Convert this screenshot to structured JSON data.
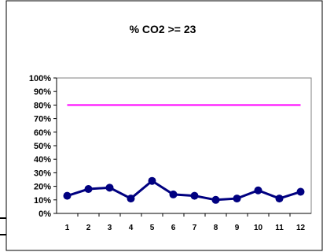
{
  "chart_data": {
    "type": "line",
    "title": "% CO2 >= 23",
    "xlabel": "",
    "ylabel": "",
    "categories": [
      "1",
      "2",
      "3",
      "4",
      "5",
      "6",
      "7",
      "8",
      "9",
      "10",
      "11",
      "12"
    ],
    "ylim": [
      0,
      100
    ],
    "yticks": [
      "0%",
      "10%",
      "20%",
      "30%",
      "40%",
      "50%",
      "60%",
      "70%",
      "80%",
      "90%",
      "100%"
    ],
    "series": [
      {
        "name": "",
        "values": [
          13,
          18,
          19,
          11,
          24,
          14,
          13,
          10,
          11,
          17,
          11,
          16
        ],
        "color": "#000080",
        "marker": "circle"
      },
      {
        "name": "",
        "values": [
          80,
          80,
          80,
          80,
          80,
          80,
          80,
          80,
          80,
          80,
          80,
          80
        ],
        "color": "#ff00ff",
        "marker": "none"
      }
    ],
    "grid": false,
    "legend": "none",
    "colors": {
      "plot_border": "#808080",
      "axis": "#000000",
      "frame_border": "#000000"
    }
  }
}
